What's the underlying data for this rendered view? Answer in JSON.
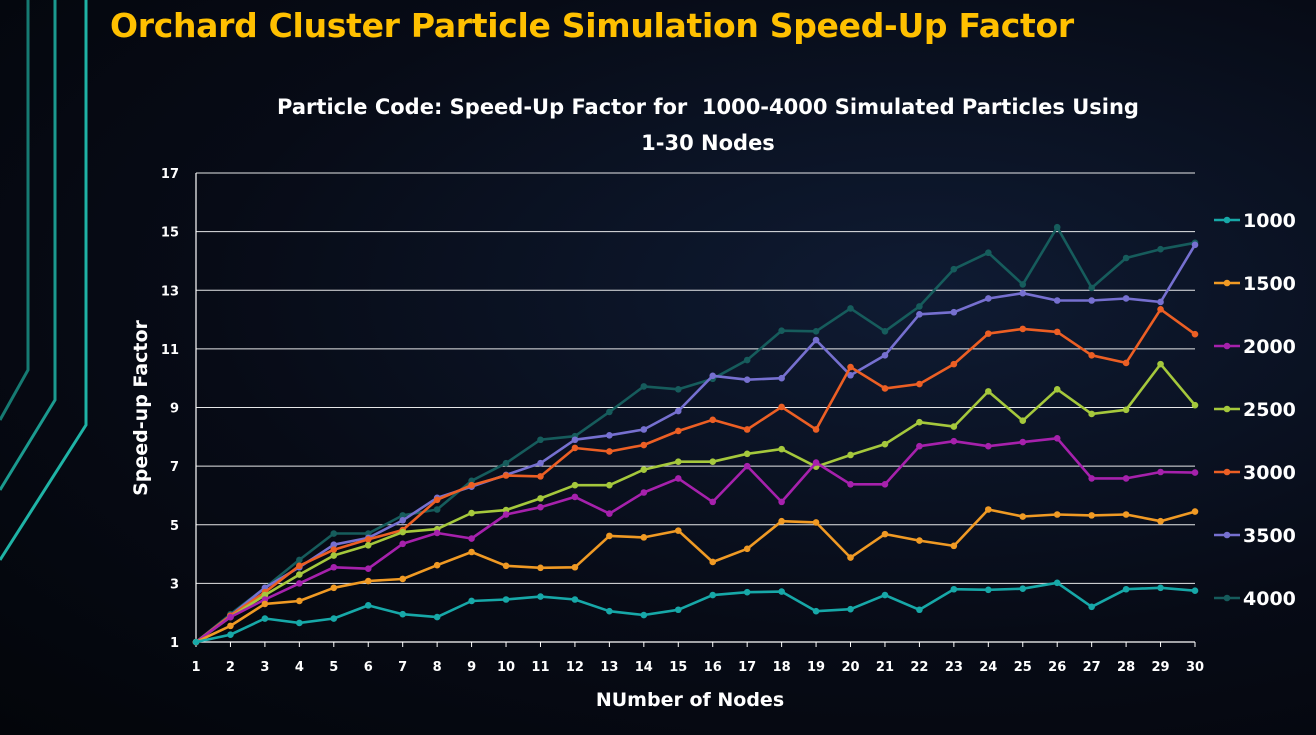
{
  "slide": {
    "title": "Orchard Cluster Particle Simulation Speed-Up Factor",
    "title_color": "#ffc000"
  },
  "chart_data": {
    "type": "line",
    "title_lines": [
      "Particle Code: Speed-Up Factor for  1000-4000 Simulated Particles Using",
      "1-30 Nodes"
    ],
    "xlabel": "NUmber of Nodes",
    "ylabel": "Speed-up Factor",
    "x": [
      1,
      2,
      3,
      4,
      5,
      6,
      7,
      8,
      9,
      10,
      11,
      12,
      13,
      14,
      15,
      16,
      17,
      18,
      19,
      20,
      21,
      22,
      23,
      24,
      25,
      26,
      27,
      28,
      29,
      30
    ],
    "ylim": [
      1,
      17
    ],
    "yticks": [
      1,
      3,
      5,
      7,
      9,
      11,
      13,
      15,
      17
    ],
    "grid": "horizontal",
    "legend_position": "right",
    "series": [
      {
        "name": "1000",
        "color": "#17a8a8",
        "values": [
          1.0,
          1.25,
          1.8,
          1.65,
          1.8,
          2.25,
          1.95,
          1.85,
          2.4,
          2.45,
          2.55,
          2.45,
          2.05,
          1.92,
          2.1,
          2.6,
          2.7,
          2.72,
          2.05,
          2.12,
          2.6,
          2.1,
          2.8,
          2.78,
          2.82,
          3.02,
          2.2,
          2.8,
          2.85,
          2.75
        ]
      },
      {
        "name": "1500",
        "color": "#f09a24",
        "values": [
          1.0,
          1.55,
          2.3,
          2.4,
          2.85,
          3.08,
          3.15,
          3.62,
          4.07,
          3.6,
          3.53,
          3.55,
          4.62,
          4.57,
          4.8,
          3.73,
          4.18,
          5.12,
          5.08,
          3.88,
          4.68,
          4.46,
          4.28,
          5.52,
          5.28,
          5.35,
          5.32,
          5.35,
          5.12,
          5.45
        ]
      },
      {
        "name": "2000",
        "color": "#a621ac",
        "values": [
          1.0,
          1.85,
          2.45,
          3.0,
          3.55,
          3.5,
          4.35,
          4.72,
          4.53,
          5.35,
          5.6,
          5.95,
          5.38,
          6.1,
          6.58,
          5.78,
          7.0,
          5.78,
          7.12,
          6.38,
          6.38,
          7.68,
          7.85,
          7.68,
          7.82,
          7.95,
          6.58,
          6.58,
          6.8,
          6.78
        ]
      },
      {
        "name": "2500",
        "color": "#a5c83c",
        "values": [
          1.0,
          1.85,
          2.6,
          3.3,
          3.95,
          4.3,
          4.75,
          4.85,
          5.4,
          5.5,
          5.9,
          6.35,
          6.35,
          6.88,
          7.15,
          7.15,
          7.42,
          7.58,
          6.98,
          7.38,
          7.75,
          8.5,
          8.35,
          9.55,
          8.55,
          9.62,
          8.78,
          8.92,
          10.48,
          9.08
        ]
      },
      {
        "name": "3000",
        "color": "#ec5f24",
        "values": [
          1.0,
          1.9,
          2.7,
          3.6,
          4.15,
          4.5,
          4.82,
          5.85,
          6.35,
          6.68,
          6.65,
          7.62,
          7.5,
          7.72,
          8.2,
          8.58,
          8.25,
          9.02,
          8.25,
          10.38,
          9.65,
          9.8,
          10.48,
          11.52,
          11.68,
          11.58,
          10.78,
          10.52,
          12.35,
          11.5
        ]
      },
      {
        "name": "3500",
        "color": "#7670d0",
        "values": [
          1.0,
          1.9,
          2.85,
          3.55,
          4.32,
          4.55,
          5.15,
          5.92,
          6.3,
          6.7,
          7.1,
          7.9,
          8.05,
          8.25,
          8.88,
          10.08,
          9.95,
          10.0,
          11.3,
          10.1,
          10.78,
          12.18,
          12.25,
          12.72,
          12.9,
          12.65,
          12.65,
          12.72,
          12.6,
          14.55
        ]
      },
      {
        "name": "4000",
        "color": "#165c5c",
        "values": [
          1.0,
          1.95,
          2.85,
          3.8,
          4.7,
          4.7,
          5.32,
          5.52,
          6.5,
          7.1,
          7.9,
          8.02,
          8.85,
          9.72,
          9.62,
          9.98,
          10.62,
          11.62,
          11.6,
          12.38,
          11.6,
          12.45,
          13.72,
          14.28,
          13.2,
          15.15,
          13.08,
          14.1,
          14.4,
          14.62
        ]
      }
    ]
  }
}
